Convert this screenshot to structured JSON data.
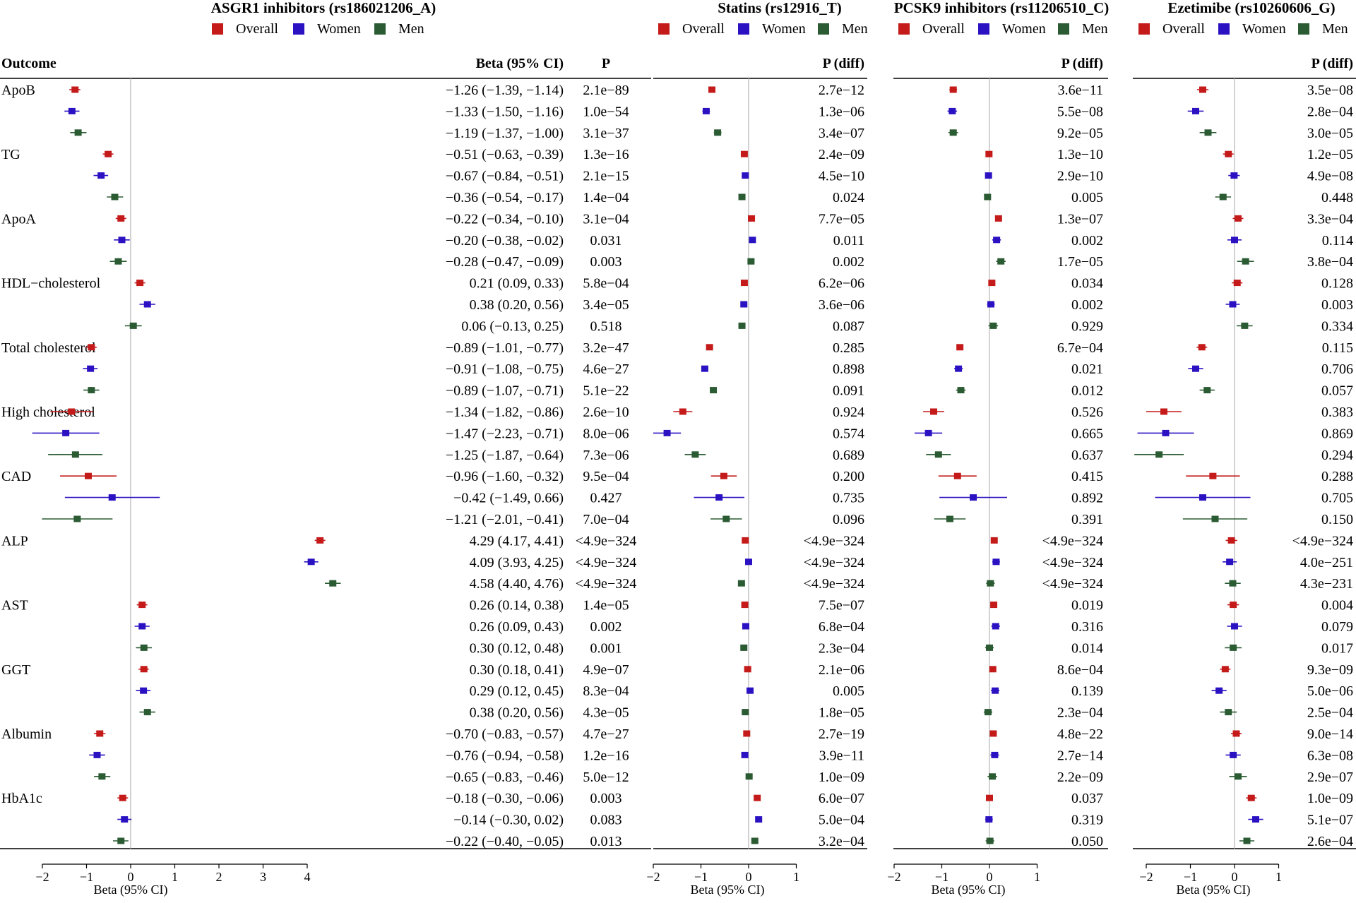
{
  "legend_labels": [
    "Overall",
    "Women",
    "Men"
  ],
  "colors": {
    "Overall": "#c41a1a",
    "Women": "#2a12c2",
    "Men": "#2b5b33",
    "axis": "#000000",
    "zero_line": "#bbbbbb"
  },
  "column_headers": {
    "outcome": "Outcome",
    "beta": "Beta (95% CI)",
    "p": "P",
    "p_diff": "P (diff)"
  },
  "chart_data": [
    {
      "type": "forest",
      "title": "ASGR1 inhibitors (rs186021206_A)",
      "xlabel": "Beta (95% CI)",
      "xticks": [
        -2,
        -1,
        0,
        1,
        2,
        3,
        4
      ],
      "outcomes": [
        "ApoB",
        "TG",
        "ApoA",
        "HDL−cholesterol",
        "Total cholesterol",
        "High cholesterol",
        "CAD",
        "ALP",
        "AST",
        "GGT",
        "Albumin",
        "HbA1c"
      ],
      "groups": [
        "Overall",
        "Women",
        "Men"
      ],
      "beta": [
        -1.26,
        -1.33,
        -1.19,
        -0.51,
        -0.67,
        -0.36,
        -0.22,
        -0.2,
        -0.28,
        0.21,
        0.38,
        0.06,
        -0.89,
        -0.91,
        -0.89,
        -1.34,
        -1.47,
        -1.25,
        -0.96,
        -0.42,
        -1.21,
        4.29,
        4.09,
        4.58,
        0.26,
        0.26,
        0.3,
        0.3,
        0.29,
        0.38,
        -0.7,
        -0.76,
        -0.65,
        -0.18,
        -0.14,
        -0.22
      ],
      "lower": [
        -1.39,
        -1.5,
        -1.37,
        -0.63,
        -0.84,
        -0.54,
        -0.34,
        -0.38,
        -0.47,
        0.09,
        0.2,
        -0.13,
        -1.01,
        -1.08,
        -1.07,
        -1.82,
        -2.23,
        -1.87,
        -1.6,
        -1.49,
        -2.01,
        4.17,
        3.93,
        4.4,
        0.14,
        0.09,
        0.12,
        0.18,
        0.12,
        0.2,
        -0.83,
        -0.94,
        -0.83,
        -0.3,
        -0.3,
        -0.4
      ],
      "upper": [
        -1.14,
        -1.16,
        -1.0,
        -0.39,
        -0.51,
        -0.17,
        -0.1,
        -0.02,
        -0.09,
        0.33,
        0.56,
        0.25,
        -0.77,
        -0.75,
        -0.71,
        -0.86,
        -0.71,
        -0.64,
        -0.32,
        0.66,
        -0.41,
        4.41,
        4.25,
        4.76,
        0.38,
        0.43,
        0.48,
        0.41,
        0.45,
        0.56,
        -0.57,
        -0.58,
        -0.46,
        -0.06,
        0.02,
        -0.05
      ],
      "ci_text": [
        "−1.26 (−1.39, −1.14)",
        "−1.33 (−1.50, −1.16)",
        "−1.19 (−1.37, −1.00)",
        "−0.51 (−0.63, −0.39)",
        "−0.67 (−0.84, −0.51)",
        "−0.36 (−0.54, −0.17)",
        "−0.22 (−0.34, −0.10)",
        "−0.20 (−0.38, −0.02)",
        "−0.28 (−0.47, −0.09)",
        "0.21 (0.09, 0.33)",
        "0.38 (0.20, 0.56)",
        "0.06 (−0.13, 0.25)",
        "−0.89 (−1.01, −0.77)",
        "−0.91 (−1.08, −0.75)",
        "−0.89 (−1.07, −0.71)",
        "−1.34 (−1.82, −0.86)",
        "−1.47 (−2.23, −0.71)",
        "−1.25 (−1.87, −0.64)",
        "−0.96 (−1.60, −0.32)",
        "−0.42 (−1.49, 0.66)",
        "−1.21 (−2.01, −0.41)",
        "4.29 (4.17, 4.41)",
        "4.09 (3.93, 4.25)",
        "4.58 (4.40, 4.76)",
        "0.26 (0.14, 0.38)",
        "0.26 (0.09, 0.43)",
        "0.30 (0.12, 0.48)",
        "0.30 (0.18, 0.41)",
        "0.29 (0.12, 0.45)",
        "0.38 (0.20, 0.56)",
        "−0.70 (−0.83, −0.57)",
        "−0.76 (−0.94, −0.58)",
        "−0.65 (−0.83, −0.46)",
        "−0.18 (−0.30, −0.06)",
        "−0.14 (−0.30, 0.02)",
        "−0.22 (−0.40, −0.05)"
      ],
      "p": [
        "2.1e−89",
        "1.0e−54",
        "3.1e−37",
        "1.3e−16",
        "2.1e−15",
        "1.4e−04",
        "3.1e−04",
        "0.031",
        "0.003",
        "5.8e−04",
        "3.4e−05",
        "0.518",
        "3.2e−47",
        "4.6e−27",
        "5.1e−22",
        "2.6e−10",
        "8.0e−06",
        "7.3e−06",
        "9.5e−04",
        "0.427",
        "7.0e−04",
        "<4.9e−324",
        "<4.9e−324",
        "<4.9e−324",
        "1.4e−05",
        "0.002",
        "0.001",
        "4.9e−07",
        "8.3e−04",
        "4.3e−05",
        "4.7e−27",
        "1.2e−16",
        "5.0e−12",
        "0.003",
        "0.083",
        "0.013"
      ]
    },
    {
      "type": "forest",
      "title": "Statins (rs12916_T)",
      "xlabel": "Beta (95% CI)",
      "xticks": [
        -2,
        -1,
        0,
        1
      ],
      "beta": [
        -0.77,
        -0.89,
        -0.65,
        -0.09,
        -0.07,
        -0.14,
        0.06,
        0.08,
        0.05,
        -0.09,
        -0.1,
        -0.14,
        -0.82,
        -0.92,
        -0.74,
        -1.38,
        -1.71,
        -1.12,
        -0.52,
        -0.62,
        -0.47,
        -0.07,
        0.0,
        -0.15,
        -0.08,
        -0.06,
        -0.1,
        -0.02,
        0.03,
        -0.07,
        -0.04,
        -0.08,
        0.01,
        0.18,
        0.21,
        0.13
      ],
      "lower": [
        -0.84,
        -0.97,
        -0.73,
        -0.14,
        -0.12,
        -0.2,
        0.0,
        0.02,
        -0.01,
        -0.15,
        -0.16,
        -0.21,
        -0.88,
        -0.99,
        -0.81,
        -1.58,
        -2.0,
        -1.34,
        -0.79,
        -1.15,
        -0.8,
        -0.12,
        -0.06,
        -0.21,
        -0.14,
        -0.12,
        -0.16,
        -0.07,
        -0.03,
        -0.13,
        -0.1,
        -0.14,
        -0.05,
        0.12,
        0.15,
        0.07
      ],
      "upper": [
        -0.7,
        -0.81,
        -0.57,
        -0.04,
        -0.02,
        -0.08,
        0.12,
        0.14,
        0.11,
        -0.03,
        -0.04,
        -0.07,
        -0.76,
        -0.85,
        -0.67,
        -1.18,
        -1.42,
        -0.9,
        -0.25,
        -0.09,
        -0.14,
        -0.02,
        0.06,
        -0.09,
        -0.02,
        0.0,
        -0.04,
        0.03,
        0.09,
        -0.01,
        0.02,
        -0.02,
        0.07,
        0.24,
        0.27,
        0.19
      ],
      "p_diff": [
        "2.7e−12",
        "1.3e−06",
        "3.4e−07",
        "2.4e−09",
        "4.5e−10",
        "0.024",
        "7.7e−05",
        "0.011",
        "0.002",
        "6.2e−06",
        "3.6e−06",
        "0.087",
        "0.285",
        "0.898",
        "0.091",
        "0.924",
        "0.574",
        "0.689",
        "0.200",
        "0.735",
        "0.096",
        "<4.9e−324",
        "<4.9e−324",
        "<4.9e−324",
        "7.5e−07",
        "6.8e−04",
        "2.3e−04",
        "2.1e−06",
        "0.005",
        "1.8e−05",
        "2.7e−19",
        "3.9e−11",
        "1.0e−09",
        "6.0e−07",
        "5.0e−04",
        "3.2e−04"
      ]
    },
    {
      "type": "forest",
      "title": "PCSK9 inhibitors (rs11206510_C)",
      "xlabel": "Beta (95% CI)",
      "xticks": [
        -2,
        -1,
        0,
        1
      ],
      "beta": [
        -0.76,
        -0.78,
        -0.76,
        -0.01,
        -0.02,
        -0.04,
        0.19,
        0.15,
        0.24,
        0.05,
        0.03,
        0.08,
        -0.62,
        -0.65,
        -0.6,
        -1.17,
        -1.28,
        -1.07,
        -0.67,
        -0.34,
        -0.83,
        0.1,
        0.14,
        0.02,
        0.09,
        0.13,
        0.0,
        0.07,
        0.12,
        -0.03,
        0.08,
        0.11,
        0.06,
        0.0,
        -0.01,
        0.01
      ],
      "lower": [
        -0.84,
        -0.88,
        -0.86,
        -0.07,
        -0.09,
        -0.11,
        0.12,
        0.06,
        0.14,
        -0.02,
        -0.05,
        -0.02,
        -0.69,
        -0.74,
        -0.7,
        -1.39,
        -1.57,
        -1.33,
        -1.07,
        -1.05,
        -1.16,
        0.03,
        0.06,
        -0.07,
        0.02,
        0.04,
        -0.09,
        0.0,
        0.03,
        -0.12,
        0.01,
        0.02,
        -0.04,
        -0.07,
        -0.09,
        -0.08
      ],
      "upper": [
        -0.68,
        -0.68,
        -0.66,
        0.05,
        0.05,
        0.03,
        0.26,
        0.24,
        0.34,
        0.12,
        0.11,
        0.18,
        -0.55,
        -0.56,
        -0.5,
        -0.95,
        -0.99,
        -0.81,
        -0.27,
        0.37,
        -0.5,
        0.17,
        0.22,
        0.11,
        0.16,
        0.22,
        0.09,
        0.14,
        0.21,
        0.06,
        0.15,
        0.2,
        0.16,
        0.07,
        0.07,
        0.1
      ],
      "p_diff": [
        "3.6e−11",
        "5.5e−08",
        "9.2e−05",
        "1.3e−10",
        "2.9e−10",
        "0.005",
        "1.3e−07",
        "0.002",
        "1.7e−05",
        "0.034",
        "0.002",
        "0.929",
        "6.7e−04",
        "0.021",
        "0.012",
        "0.526",
        "0.665",
        "0.637",
        "0.415",
        "0.892",
        "0.391",
        "<4.9e−324",
        "<4.9e−324",
        "<4.9e−324",
        "0.019",
        "0.316",
        "0.014",
        "8.6e−04",
        "0.139",
        "2.3e−04",
        "4.8e−22",
        "2.7e−14",
        "2.2e−09",
        "0.037",
        "0.319",
        "0.050"
      ]
    },
    {
      "type": "forest",
      "title": "Ezetimibe (rs10260606_G)",
      "xlabel": "Beta (95% CI)",
      "xticks": [
        -2,
        -1,
        0,
        1
      ],
      "beta": [
        -0.72,
        -0.88,
        -0.6,
        -0.14,
        -0.01,
        -0.26,
        0.08,
        0.0,
        0.25,
        0.06,
        -0.04,
        0.23,
        -0.74,
        -0.88,
        -0.62,
        -1.6,
        -1.56,
        -1.71,
        -0.49,
        -0.72,
        -0.44,
        -0.07,
        -0.11,
        -0.04,
        -0.03,
        0.0,
        -0.03,
        -0.21,
        -0.35,
        -0.14,
        0.04,
        -0.03,
        0.08,
        0.38,
        0.48,
        0.28
      ],
      "lower": [
        -0.85,
        -1.06,
        -0.79,
        -0.26,
        -0.14,
        -0.44,
        -0.04,
        -0.16,
        0.06,
        -0.06,
        -0.2,
        0.05,
        -0.86,
        -1.05,
        -0.79,
        -2.0,
        -2.2,
        -2.27,
        -1.1,
        -1.8,
        -1.17,
        -0.2,
        -0.27,
        -0.22,
        -0.16,
        -0.17,
        -0.22,
        -0.33,
        -0.52,
        -0.33,
        -0.08,
        -0.2,
        -0.12,
        0.26,
        0.31,
        0.11
      ],
      "upper": [
        -0.59,
        -0.7,
        -0.41,
        -0.02,
        0.12,
        -0.08,
        0.2,
        0.16,
        0.44,
        0.18,
        0.12,
        0.41,
        -0.62,
        -0.71,
        -0.45,
        -1.2,
        -0.92,
        -1.15,
        0.12,
        0.36,
        0.29,
        0.06,
        0.05,
        0.14,
        0.1,
        0.17,
        0.16,
        -0.09,
        -0.18,
        0.05,
        0.16,
        0.14,
        0.28,
        0.5,
        0.65,
        0.45
      ],
      "p_diff": [
        "3.5e−08",
        "2.8e−04",
        "3.0e−05",
        "1.2e−05",
        "4.9e−08",
        "0.448",
        "3.3e−04",
        "0.114",
        "3.8e−04",
        "0.128",
        "0.003",
        "0.334",
        "0.115",
        "0.706",
        "0.057",
        "0.383",
        "0.869",
        "0.294",
        "0.288",
        "0.705",
        "0.150",
        "<4.9e−324",
        "4.0e−251",
        "4.3e−231",
        "0.004",
        "0.079",
        "0.017",
        "9.3e−09",
        "5.0e−06",
        "2.5e−04",
        "9.0e−14",
        "6.3e−08",
        "2.9e−07",
        "1.0e−09",
        "5.1e−07",
        "2.6e−04"
      ]
    }
  ]
}
